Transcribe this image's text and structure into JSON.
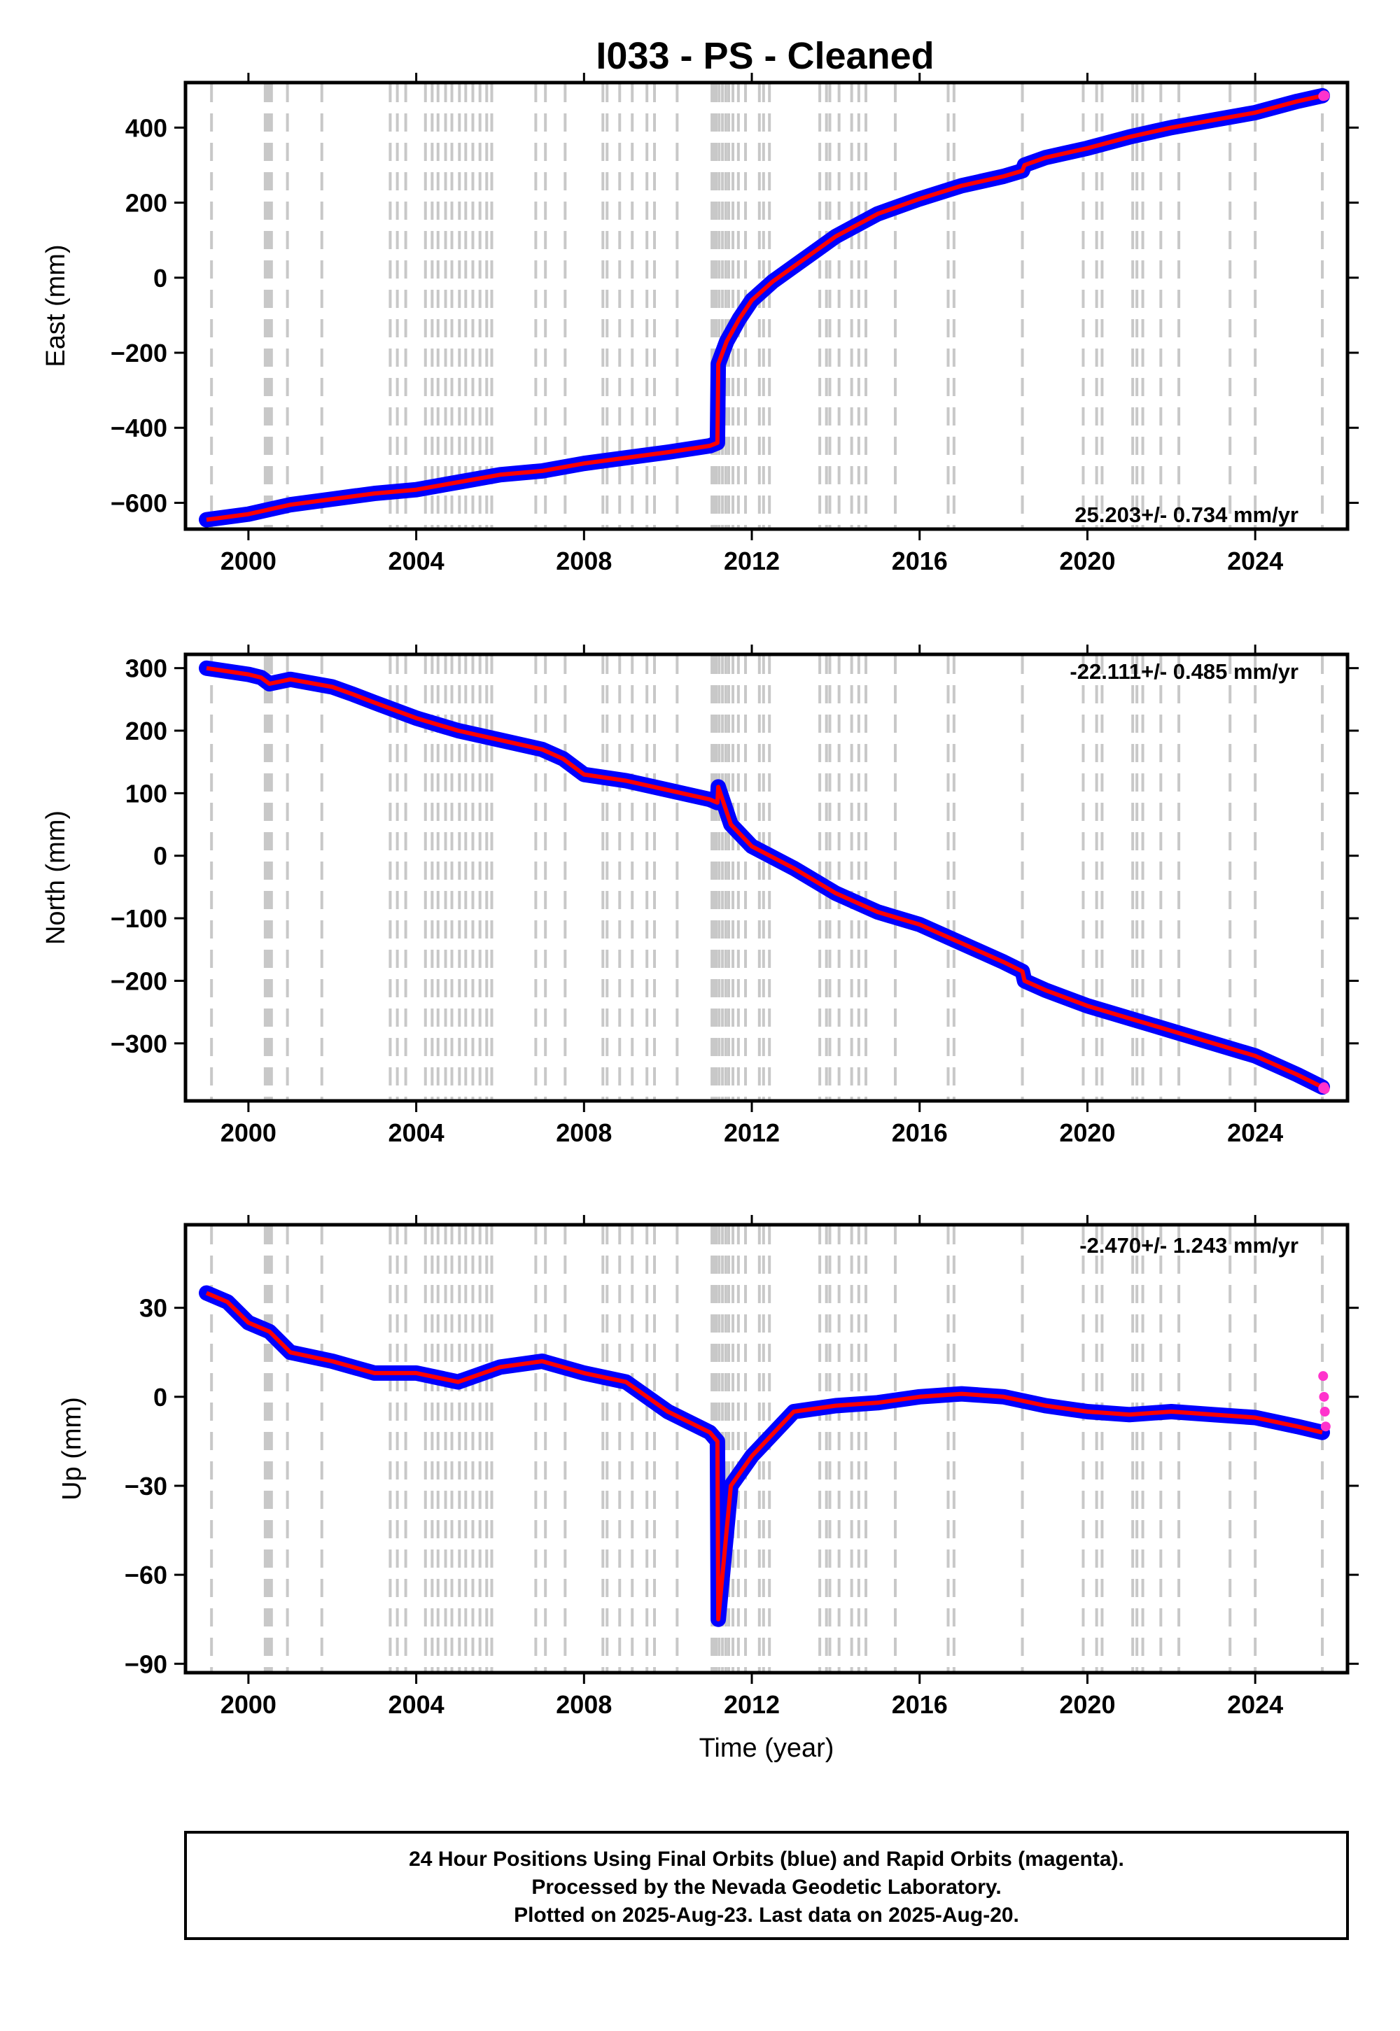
{
  "colors": {
    "final_orbits": "#0000ff",
    "rapid_orbits": "#ff33cc",
    "model": "#ff0000",
    "event_lines": "#c8c8c8"
  },
  "chart_data": [
    {
      "type": "scatter",
      "title": "I033  - PS - Cleaned",
      "ylabel": "East (mm)",
      "xlabel": "",
      "rate_label": "25.203+/- 0.734 mm/yr",
      "xlim": [
        1998.5,
        2026.2
      ],
      "ylim": [
        -670,
        520
      ],
      "xticks": [
        2000,
        2004,
        2008,
        2012,
        2016,
        2020,
        2024
      ],
      "yticks": [
        -600,
        -400,
        -200,
        0,
        200,
        400
      ],
      "grid": false,
      "series": [
        {
          "color": "#0000ff",
          "x": [
            1999.0,
            2000.0,
            2001.0,
            2002.0,
            2003.0,
            2004.0,
            2005.0,
            2006.0,
            2007.0,
            2008.0,
            2009.0,
            2010.0,
            2011.0,
            2011.18,
            2011.2,
            2011.4,
            2011.7,
            2012.0,
            2012.5,
            2013.0,
            2013.5,
            2014.0,
            2015.0,
            2016.0,
            2017.0,
            2018.0,
            2018.45,
            2018.5,
            2019.0,
            2020.0,
            2021.0,
            2022.0,
            2023.0,
            2024.0,
            2025.0,
            2025.6
          ],
          "y": [
            -645,
            -630,
            -605,
            -590,
            -575,
            -565,
            -545,
            -525,
            -515,
            -495,
            -480,
            -465,
            -448,
            -440,
            -230,
            -170,
            -110,
            -60,
            -10,
            30,
            70,
            110,
            170,
            210,
            245,
            270,
            285,
            300,
            320,
            345,
            375,
            400,
            420,
            440,
            470,
            485
          ]
        },
        {
          "color": "#ff33cc",
          "x": [
            2025.62,
            2025.64,
            2025.66
          ],
          "y": [
            484,
            486,
            485
          ]
        }
      ]
    },
    {
      "type": "scatter",
      "ylabel": "North (mm)",
      "xlabel": "",
      "rate_label": "-22.111+/- 0.485 mm/yr",
      "xlim": [
        1998.5,
        2026.2
      ],
      "ylim": [
        -392,
        322
      ],
      "xticks": [
        2000,
        2004,
        2008,
        2012,
        2016,
        2020,
        2024
      ],
      "yticks": [
        -300,
        -200,
        -100,
        0,
        100,
        200,
        300
      ],
      "grid": false,
      "series": [
        {
          "color": "#0000ff",
          "x": [
            1999.0,
            2000.0,
            2000.3,
            2000.5,
            2001.0,
            2002.0,
            2002.5,
            2003.0,
            2004.0,
            2005.0,
            2006.0,
            2007.0,
            2007.5,
            2008.0,
            2009.0,
            2010.0,
            2011.0,
            2011.18,
            2011.2,
            2011.5,
            2012.0,
            2013.0,
            2014.0,
            2015.0,
            2016.0,
            2017.0,
            2018.0,
            2018.45,
            2018.5,
            2019.0,
            2020.0,
            2021.0,
            2022.0,
            2023.0,
            2024.0,
            2025.0,
            2025.6
          ],
          "y": [
            300,
            290,
            285,
            275,
            282,
            270,
            258,
            245,
            220,
            200,
            185,
            170,
            155,
            130,
            120,
            105,
            90,
            85,
            110,
            50,
            15,
            -20,
            -60,
            -90,
            -110,
            -140,
            -170,
            -185,
            -200,
            -215,
            -240,
            -260,
            -280,
            -300,
            -320,
            -350,
            -370
          ]
        },
        {
          "color": "#ff33cc",
          "x": [
            2025.62,
            2025.64,
            2025.66
          ],
          "y": [
            -372,
            -370,
            -373
          ]
        }
      ]
    },
    {
      "type": "scatter",
      "ylabel": "Up (mm)",
      "xlabel": "Time (year)",
      "rate_label": "-2.470+/- 1.243 mm/yr",
      "xlim": [
        1998.5,
        2026.2
      ],
      "ylim": [
        -93,
        58
      ],
      "xticks": [
        2000,
        2004,
        2008,
        2012,
        2016,
        2020,
        2024
      ],
      "yticks": [
        -90,
        -60,
        -30,
        0,
        30
      ],
      "grid": false,
      "series": [
        {
          "color": "#0000ff",
          "x": [
            1999.0,
            1999.5,
            2000.0,
            2000.5,
            2001.0,
            2002.0,
            2003.0,
            2004.0,
            2005.0,
            2006.0,
            2007.0,
            2008.0,
            2009.0,
            2010.0,
            2011.0,
            2011.18,
            2011.2,
            2011.5,
            2012.0,
            2013.0,
            2014.0,
            2015.0,
            2016.0,
            2017.0,
            2018.0,
            2019.0,
            2020.0,
            2021.0,
            2022.0,
            2023.0,
            2024.0,
            2025.0,
            2025.6
          ],
          "y": [
            35,
            32,
            25,
            22,
            15,
            12,
            8,
            8,
            5,
            10,
            12,
            8,
            5,
            -5,
            -12,
            -15,
            -75,
            -30,
            -20,
            -5,
            -3,
            -2,
            0,
            1,
            0,
            -3,
            -5,
            -6,
            -5,
            -6,
            -7,
            -10,
            -12
          ]
        },
        {
          "color": "#ff33cc",
          "x": [
            2025.62,
            2025.64,
            2025.66,
            2025.68
          ],
          "y": [
            7,
            0,
            -5,
            -10
          ]
        }
      ]
    }
  ],
  "footer": {
    "line1": "24 Hour Positions Using Final Orbits (blue) and Rapid Orbits (magenta).",
    "line2": "Processed by the Nevada Geodetic Laboratory.",
    "line3": "Plotted on 2025-Aug-23. Last data on 2025-Aug-20."
  }
}
